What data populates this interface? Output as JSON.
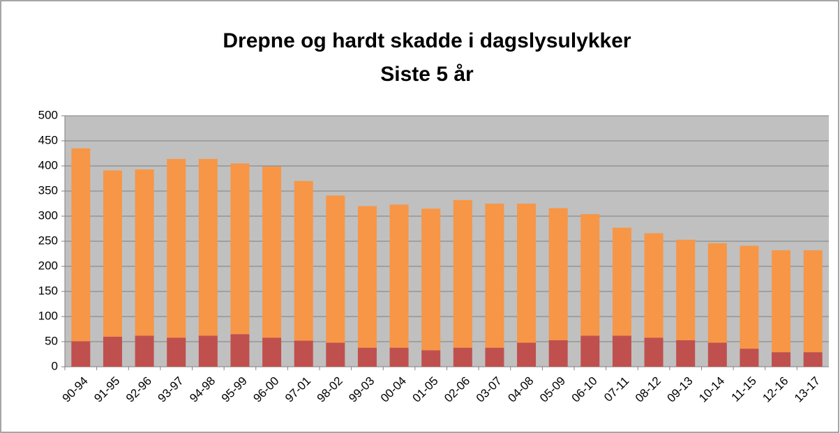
{
  "chart_data": {
    "type": "stacked_bar",
    "title": "Drepne og hardt skadde i dagslysulykker",
    "subtitle": "Siste 5 år",
    "categories": [
      "90-94",
      "91-95",
      "92-96",
      "93-97",
      "94-98",
      "95-99",
      "96-00",
      "97-01",
      "98-02",
      "99-03",
      "00-04",
      "01-05",
      "02-06",
      "03-07",
      "04-08",
      "05-09",
      "06-10",
      "07-11",
      "08-12",
      "09-13",
      "10-14",
      "11-15",
      "12-16",
      "13-17"
    ],
    "series": [
      {
        "color": "#c0504d",
        "values": [
          51,
          60,
          62,
          58,
          62,
          65,
          58,
          52,
          48,
          38,
          38,
          33,
          38,
          38,
          48,
          53,
          62,
          62,
          58,
          53,
          48,
          36,
          29,
          29
        ]
      },
      {
        "color": "#f79646",
        "values": [
          384,
          331,
          331,
          356,
          352,
          340,
          341,
          318,
          293,
          282,
          285,
          282,
          294,
          287,
          277,
          263,
          242,
          215,
          208,
          200,
          198,
          205,
          203,
          203
        ]
      }
    ],
    "ylim": [
      0,
      500
    ],
    "yticks": [
      0,
      50,
      100,
      150,
      200,
      250,
      300,
      350,
      400,
      450,
      500
    ],
    "grid": true
  }
}
